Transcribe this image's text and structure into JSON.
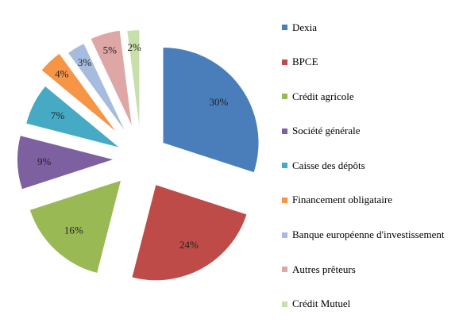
{
  "chart_data": {
    "type": "pie",
    "title": "",
    "exploded": true,
    "legend_position": "right",
    "slices": [
      {
        "name": "Dexia",
        "value": 30,
        "label": "30%",
        "color": "#4a7ebb"
      },
      {
        "name": "BPCE",
        "value": 24,
        "label": "24%",
        "color": "#be4b48"
      },
      {
        "name": "Crédit agricole",
        "value": 16,
        "label": "16%",
        "color": "#98b954"
      },
      {
        "name": "Société générale",
        "value": 9,
        "label": "9%",
        "color": "#7d60a0"
      },
      {
        "name": "Caisse des dépôts",
        "value": 7,
        "label": "7%",
        "color": "#46aac5"
      },
      {
        "name": "Financement obligataire",
        "value": 4,
        "label": "4%",
        "color": "#f69546"
      },
      {
        "name": "Banque européenne d'investissement",
        "value": 3,
        "label": "3%",
        "color": "#a6bcdf"
      },
      {
        "name": "Autres prêteurs",
        "value": 5,
        "label": "5%",
        "color": "#dea7a6"
      },
      {
        "name": "Crédit Mutuel",
        "value": 2,
        "label": "2%",
        "color": "#c7dfa8"
      }
    ]
  }
}
